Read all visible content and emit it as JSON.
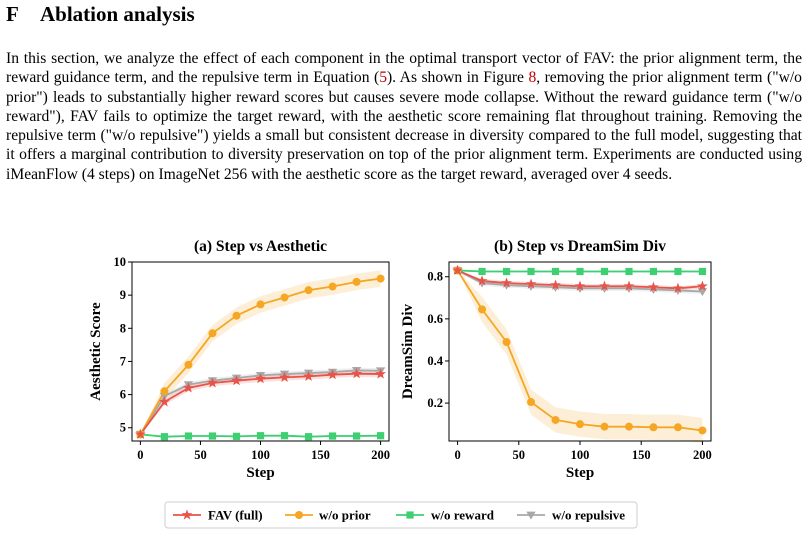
{
  "section": {
    "number": "F",
    "title": "Ablation analysis"
  },
  "paragraph": {
    "p1": "In this section, we analyze the effect of each component in the optimal transport vector of FAV: the prior alignment term, the reward guidance term, and the repulsive term in Equation (",
    "eq_ref": "5",
    "p2": "). As shown in Figure ",
    "fig_ref": "8",
    "p3": ", removing the prior alignment term (\"w/o prior\") leads to substantially higher reward scores but causes severe mode collapse. Without the reward guidance term (\"w/o reward\"), FAV fails to optimize the target reward, with the aesthetic score remaining flat throughout training. Removing the repulsive term (\"w/o repulsive\") yields a small but consistent decrease in diversity compared to the full model, suggesting that it offers a marginal contribution to diversity preservation on top of the prior alignment term. Experiments are conducted using iMeanFlow (4 steps) on ImageNet 256 with the aesthetic score as the target reward, averaged over 4 seeds."
  },
  "legend": [
    {
      "label": "FAV (full)",
      "color": "#e8534a",
      "marker": "star"
    },
    {
      "label": "w/o prior",
      "color": "#f5a623",
      "marker": "circle"
    },
    {
      "label": "w/o reward",
      "color": "#3ecf72",
      "marker": "square"
    },
    {
      "label": "w/o repulsive",
      "color": "#a8a8a8",
      "marker": "triangle-down"
    }
  ],
  "chart_data": [
    {
      "type": "line",
      "title": "(a) Step vs Aesthetic",
      "xlabel": "Step",
      "ylabel": "Aesthetic Score",
      "xlim": [
        -7,
        207
      ],
      "ylim": [
        4.6,
        10
      ],
      "xticks": [
        0,
        50,
        100,
        150,
        200
      ],
      "yticks": [
        5,
        6,
        7,
        8,
        9,
        10
      ],
      "ytick_labels": [
        "5",
        "6",
        "7",
        "8",
        "9",
        "10"
      ],
      "grid": false,
      "x": [
        0,
        20,
        40,
        60,
        80,
        100,
        120,
        140,
        160,
        180,
        200
      ],
      "series": [
        {
          "name": "FAV (full)",
          "values": [
            4.8,
            5.78,
            6.2,
            6.35,
            6.42,
            6.48,
            6.52,
            6.55,
            6.6,
            6.63,
            6.62
          ],
          "band": 0.1
        },
        {
          "name": "w/o prior",
          "values": [
            4.8,
            6.1,
            6.9,
            7.85,
            8.38,
            8.72,
            8.93,
            9.15,
            9.26,
            9.4,
            9.5
          ],
          "band": 0.25
        },
        {
          "name": "w/o reward",
          "values": [
            4.8,
            4.73,
            4.75,
            4.75,
            4.74,
            4.76,
            4.76,
            4.73,
            4.75,
            4.75,
            4.76
          ],
          "band": 0.03
        },
        {
          "name": "w/o repulsive",
          "values": [
            4.8,
            5.95,
            6.3,
            6.42,
            6.5,
            6.58,
            6.62,
            6.65,
            6.68,
            6.73,
            6.72
          ],
          "band": 0.08
        }
      ]
    },
    {
      "type": "line",
      "title": "(b) Step vs DreamSim Div",
      "xlabel": "Step",
      "ylabel": "DreamSim Div",
      "xlim": [
        -7,
        207
      ],
      "ylim": [
        0.02,
        0.87
      ],
      "xticks": [
        0,
        50,
        100,
        150,
        200
      ],
      "yticks": [
        0.2,
        0.4,
        0.6,
        0.8
      ],
      "ytick_labels": [
        "0.2",
        "0.4",
        "0.6",
        "0.8"
      ],
      "grid": false,
      "x": [
        0,
        20,
        40,
        60,
        80,
        100,
        120,
        140,
        160,
        180,
        200
      ],
      "series": [
        {
          "name": "FAV (full)",
          "values": [
            0.83,
            0.78,
            0.77,
            0.765,
            0.76,
            0.755,
            0.755,
            0.755,
            0.75,
            0.745,
            0.755
          ],
          "band": 0.01
        },
        {
          "name": "w/o prior",
          "values": [
            0.83,
            0.645,
            0.49,
            0.205,
            0.12,
            0.1,
            0.088,
            0.088,
            0.085,
            0.085,
            0.07
          ],
          "band": 0.06
        },
        {
          "name": "w/o reward",
          "values": [
            0.83,
            0.825,
            0.825,
            0.825,
            0.825,
            0.825,
            0.825,
            0.825,
            0.825,
            0.825,
            0.825
          ],
          "band": 0.005
        },
        {
          "name": "w/o repulsive",
          "values": [
            0.83,
            0.77,
            0.76,
            0.755,
            0.75,
            0.745,
            0.745,
            0.745,
            0.74,
            0.735,
            0.73
          ],
          "band": 0.012
        }
      ]
    }
  ]
}
